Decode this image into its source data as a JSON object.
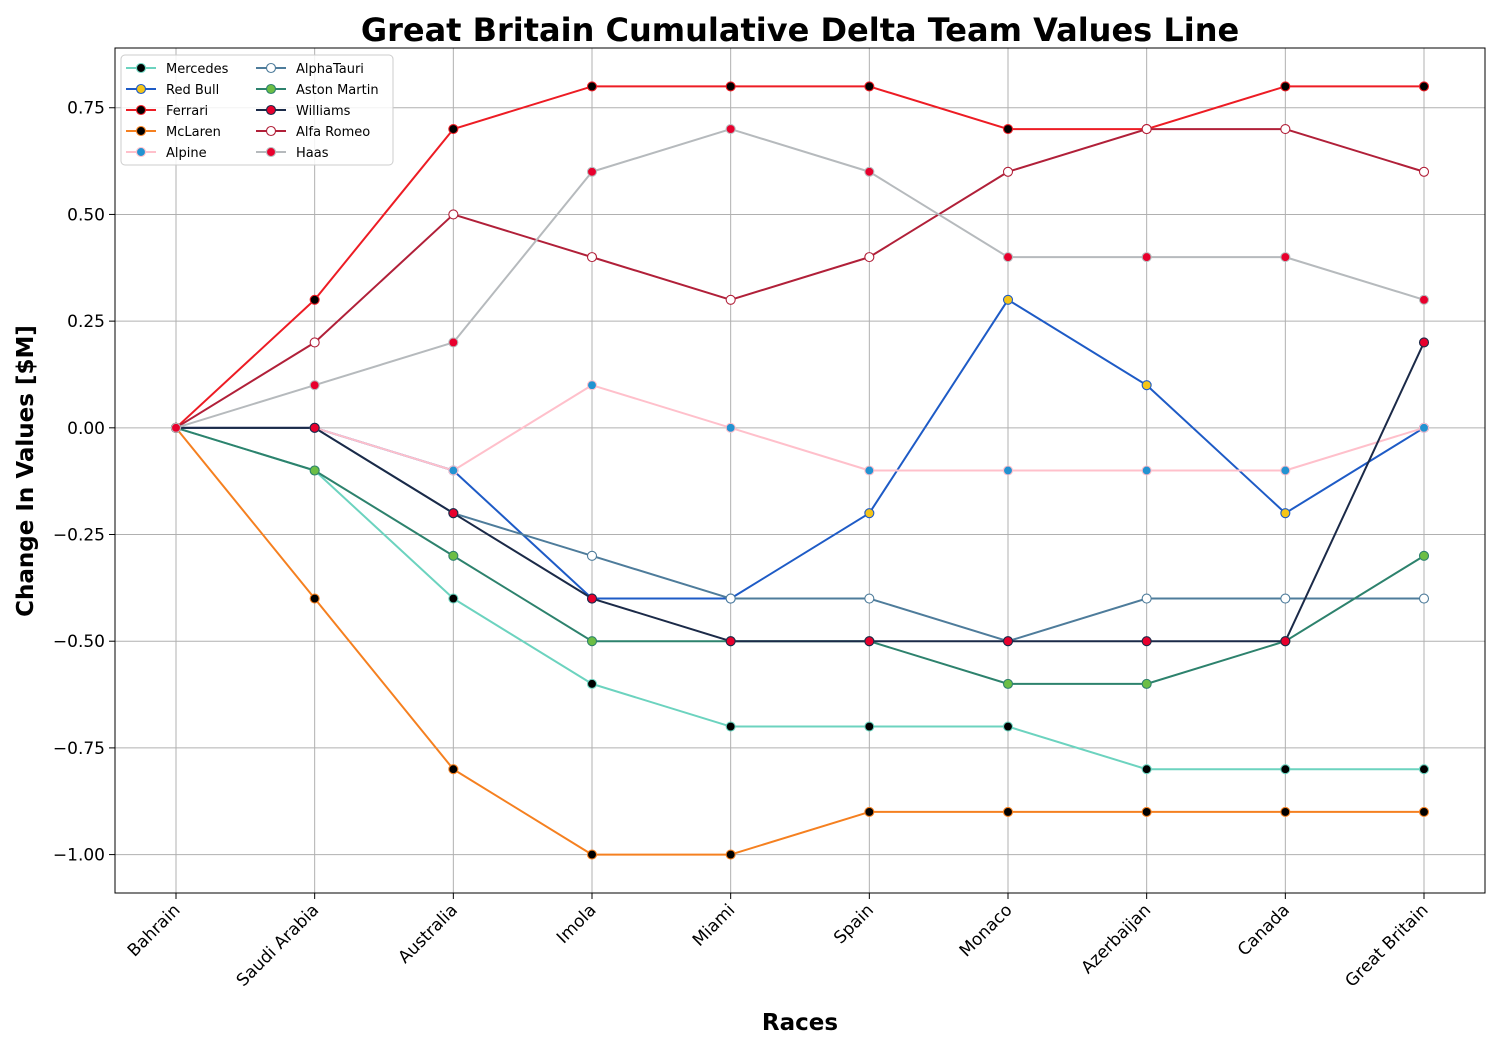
{
  "chart_data": {
    "type": "line",
    "title": "Great Britain Cumulative Delta Team Values Line",
    "xlabel": "Races",
    "ylabel": "Change In Values [$M]",
    "categories": [
      "Bahrain",
      "Saudi Arabia",
      "Australia",
      "Imola",
      "Miami",
      "Spain",
      "Monaco",
      "Azerbaijan",
      "Canada",
      "Great Britain"
    ],
    "ylim": [
      -1.09,
      0.89
    ],
    "yticks": [
      -1.0,
      -0.75,
      -0.5,
      -0.25,
      0.0,
      0.25,
      0.5,
      0.75
    ],
    "ytick_labels": [
      "−1.00",
      "−0.75",
      "−0.50",
      "−0.25",
      "0.00",
      "0.25",
      "0.50",
      "0.75"
    ],
    "grid": true,
    "legend_position": "top-left",
    "series": [
      {
        "name": "Mercedes",
        "line_color": "#6cd3bf",
        "marker_color": "#000000",
        "values": [
          0,
          -0.1,
          -0.4,
          -0.6,
          -0.7,
          -0.7,
          -0.7,
          -0.8,
          -0.8,
          -0.8
        ]
      },
      {
        "name": "Red Bull",
        "line_color": "#1e5bc6",
        "marker_color": "#f5c518",
        "values": [
          0,
          0,
          -0.1,
          -0.4,
          -0.4,
          -0.2,
          0.3,
          0.1,
          -0.2,
          0
        ]
      },
      {
        "name": "Ferrari",
        "line_color": "#ed1c24",
        "marker_color": "#000000",
        "values": [
          0,
          0.3,
          0.7,
          0.8,
          0.8,
          0.8,
          0.7,
          0.7,
          0.8,
          0.8
        ]
      },
      {
        "name": "McLaren",
        "line_color": "#f58020",
        "marker_color": "#000000",
        "values": [
          0,
          -0.4,
          -0.8,
          -1.0,
          -1.0,
          -0.9,
          -0.9,
          -0.9,
          -0.9,
          -0.9
        ]
      },
      {
        "name": "Alpine",
        "line_color": "#ffc0cb",
        "marker_color": "#2293d1",
        "values": [
          0,
          0,
          -0.1,
          0.1,
          0,
          -0.1,
          -0.1,
          -0.1,
          -0.1,
          0
        ]
      },
      {
        "name": "AlphaTauri",
        "line_color": "#4e7c9b",
        "marker_color": "#ffffff",
        "values": [
          0,
          0,
          -0.2,
          -0.3,
          -0.4,
          -0.4,
          -0.5,
          -0.4,
          -0.4,
          -0.4
        ]
      },
      {
        "name": "Aston Martin",
        "line_color": "#2d826d",
        "marker_color": "#6cbe45",
        "values": [
          0,
          -0.1,
          -0.3,
          -0.5,
          -0.5,
          -0.5,
          -0.6,
          -0.6,
          -0.5,
          -0.3
        ]
      },
      {
        "name": "Williams",
        "line_color": "#1b2a48",
        "marker_color": "#e8002d",
        "values": [
          0,
          0,
          -0.2,
          -0.4,
          -0.5,
          -0.5,
          -0.5,
          -0.5,
          -0.5,
          0.2
        ]
      },
      {
        "name": "Alfa Romeo",
        "line_color": "#b12039",
        "marker_color": "#ffffff",
        "values": [
          0,
          0.2,
          0.5,
          0.4,
          0.3,
          0.4,
          0.6,
          0.7,
          0.7,
          0.6
        ]
      },
      {
        "name": "Haas",
        "line_color": "#b6babd",
        "marker_color": "#e8002d",
        "values": [
          0,
          0.1,
          0.2,
          0.6,
          0.7,
          0.6,
          0.4,
          0.4,
          0.4,
          0.3
        ]
      }
    ]
  }
}
